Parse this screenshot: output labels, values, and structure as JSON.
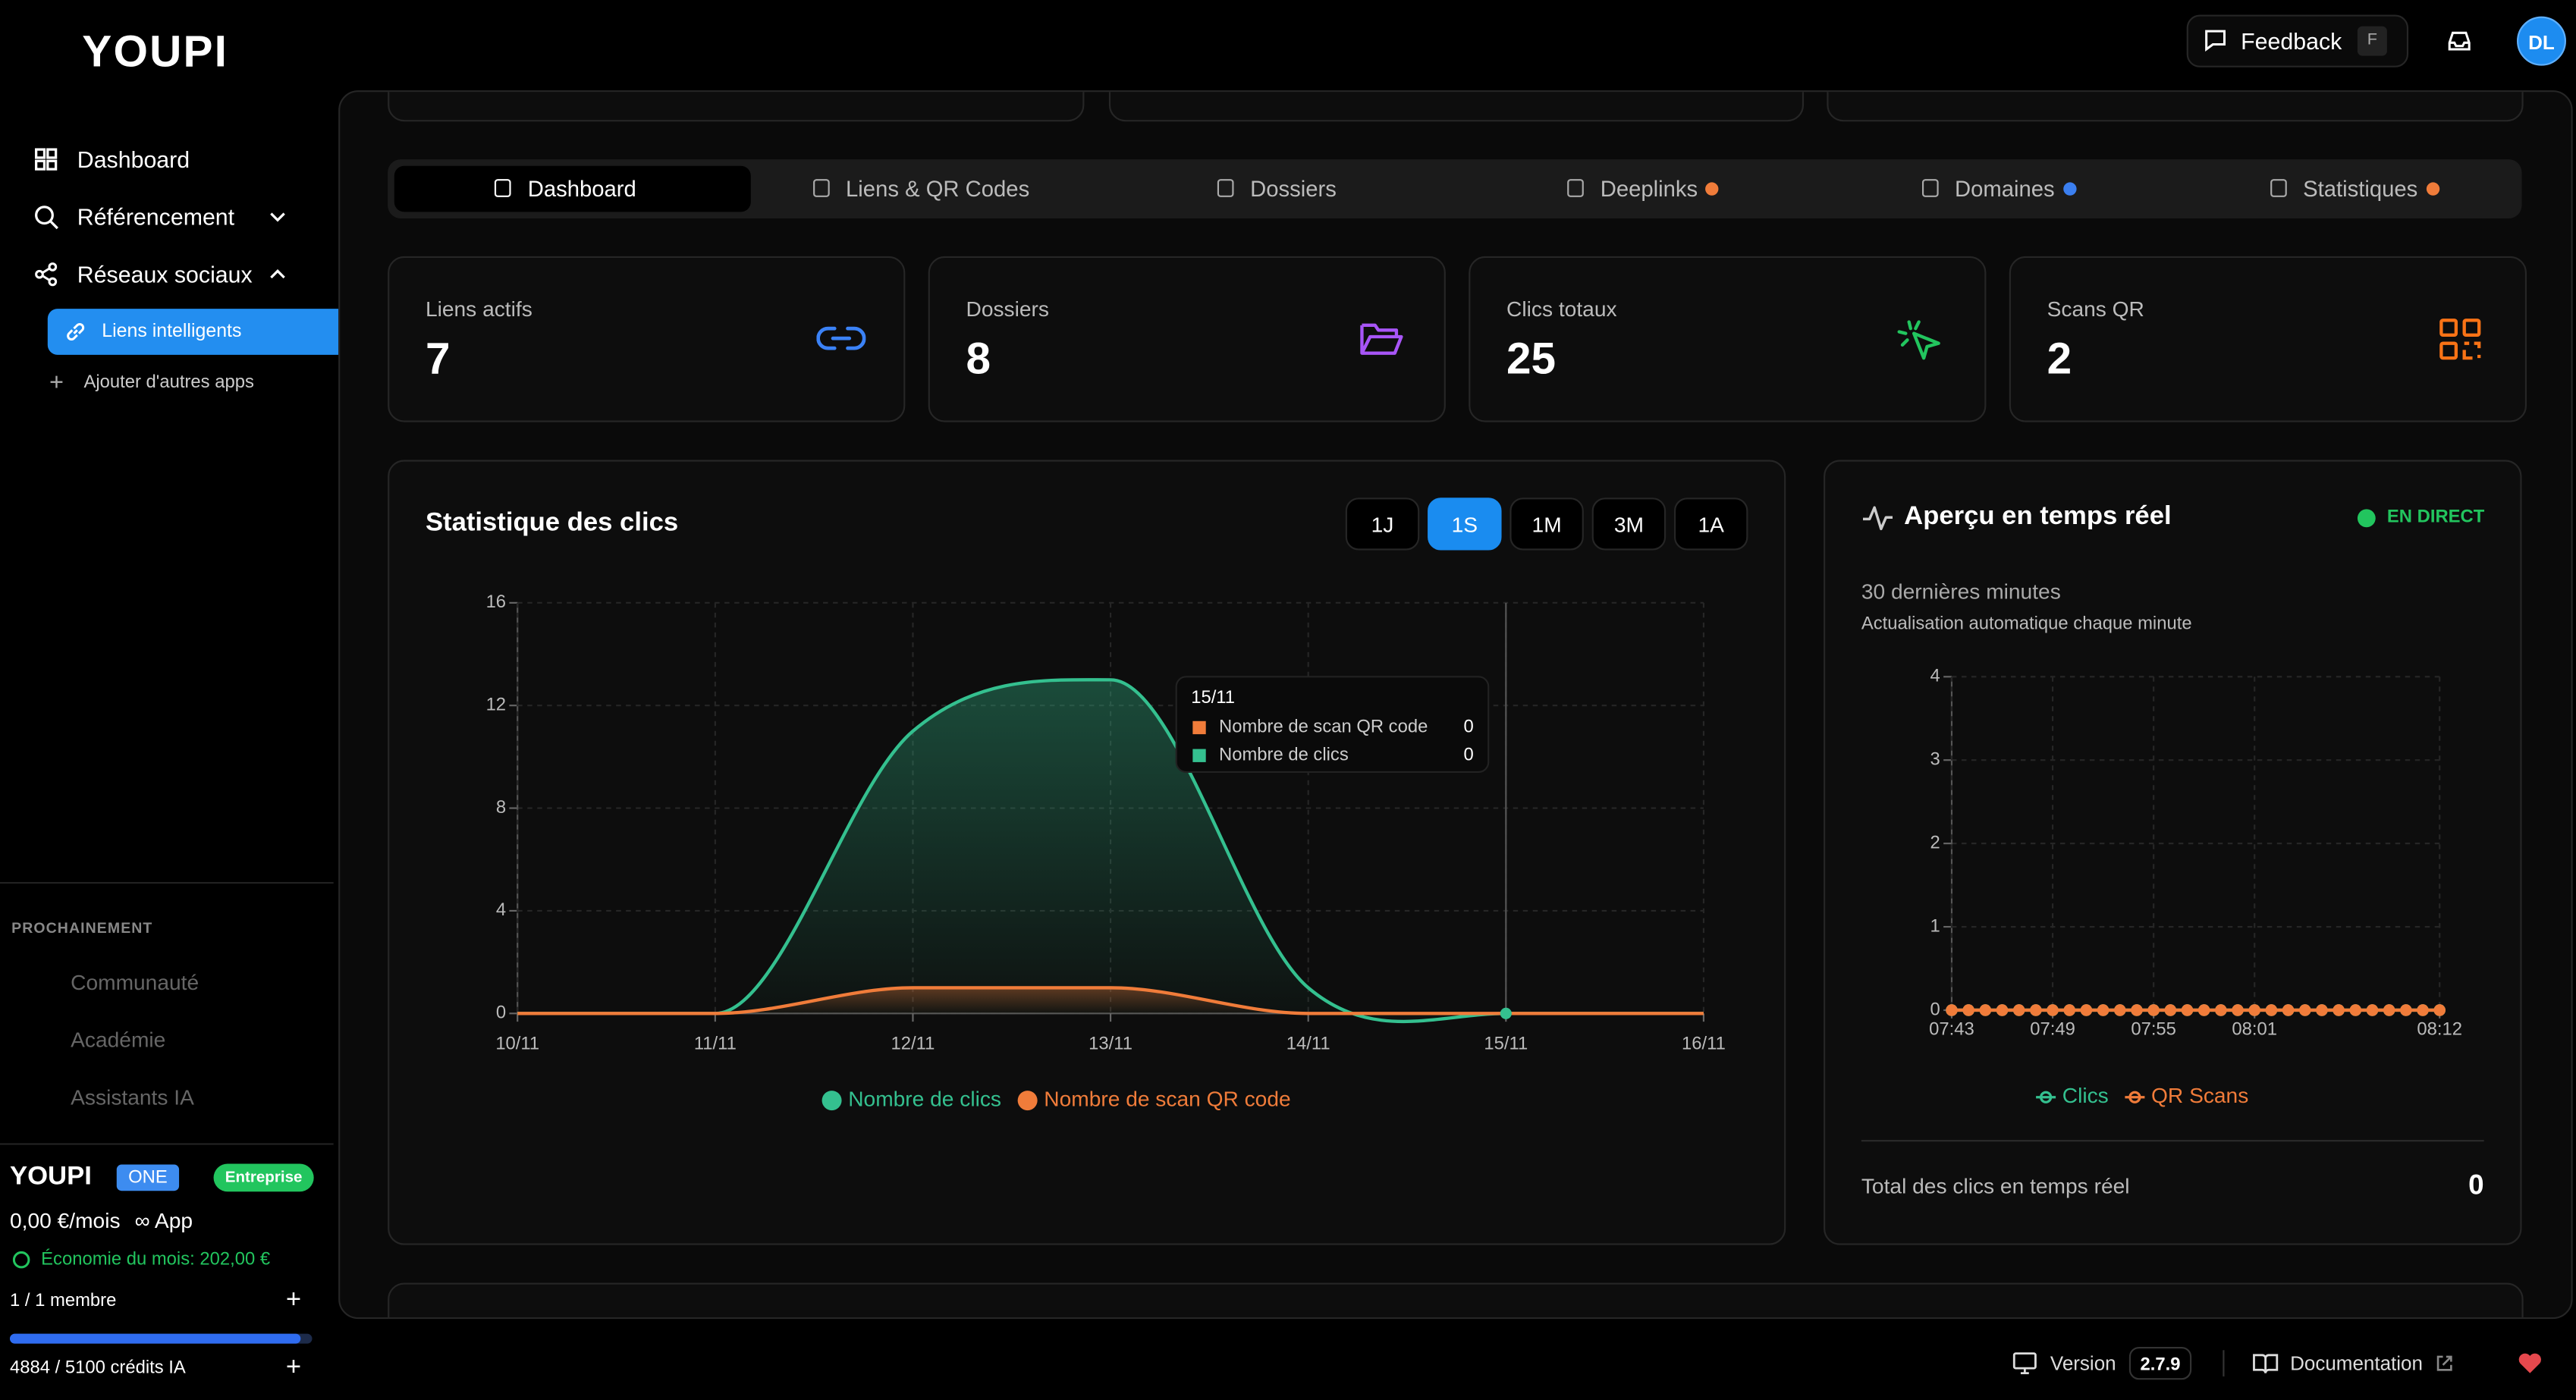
{
  "sidebar": {
    "logo": "YOUPI",
    "nav": [
      "Dashboard",
      "Référencement",
      "Réseaux sociaux"
    ],
    "subnav": [
      "Liens intelligents",
      "Ajouter d'autres apps"
    ],
    "soon_title": "PROCHAINEMENT",
    "soon": [
      "Communauté",
      "Académie",
      "Assistants IA"
    ],
    "plan": {
      "logo": "YOUPI",
      "badge": "ONE",
      "tier": "Entreprise",
      "price": "0,00 €/mois",
      "app": "∞ App",
      "savings": "Économie du mois: 202,00 €",
      "members": "1 / 1 membre",
      "credits": "4884 / 5100 crédits IA"
    }
  },
  "header": {
    "feedback": "Feedback",
    "shortcut": "F",
    "avatar": "DL"
  },
  "tabs": [
    {
      "label": "Dashboard"
    },
    {
      "label": "Liens & QR Codes"
    },
    {
      "label": "Dossiers"
    },
    {
      "label": "Deeplinks",
      "dot": "#f07c3a"
    },
    {
      "label": "Domaines",
      "dot": "#3b7ff0"
    },
    {
      "label": "Statistiques",
      "dot": "#f07c3a"
    }
  ],
  "active_tab": "Dashboard",
  "stats": [
    {
      "label": "Liens actifs",
      "value": 7
    },
    {
      "label": "Dossiers",
      "value": 8
    },
    {
      "label": "Clics totaux",
      "value": 25
    },
    {
      "label": "Scans QR",
      "value": 2
    }
  ],
  "chart_data": [
    {
      "type": "area",
      "title": "Statistique des clics",
      "ranges": [
        "1J",
        "1S",
        "1M",
        "3M",
        "1A"
      ],
      "active_range": "1S",
      "categories": [
        "10/11",
        "11/11",
        "12/11",
        "13/11",
        "14/11",
        "15/11",
        "16/11"
      ],
      "series": [
        {
          "name": "Nombre de clics",
          "color": "#34c08f",
          "values": [
            0,
            0,
            11,
            13,
            1,
            0,
            0
          ]
        },
        {
          "name": "Nombre de scan QR code",
          "color": "#f07c3a",
          "values": [
            0,
            0,
            1,
            1,
            0,
            0,
            0
          ]
        }
      ],
      "ylim": [
        0,
        16
      ],
      "yticks": [
        0,
        4,
        8,
        12,
        16
      ],
      "grid": true
    },
    {
      "type": "line",
      "title": "Aperçu en temps réel",
      "status": "EN DIRECT",
      "subtitle": "30 dernières minutes",
      "note": "Actualisation automatique chaque minute",
      "categories": [
        "07:43",
        null,
        null,
        null,
        null,
        null,
        "07:49",
        null,
        null,
        null,
        null,
        null,
        "07:55",
        null,
        null,
        null,
        null,
        null,
        "08:01",
        null,
        null,
        null,
        null,
        null,
        null,
        null,
        null,
        null,
        null,
        "08:12"
      ],
      "series": [
        {
          "name": "Clics",
          "color": "#34c08f",
          "values": [
            0,
            0,
            0,
            0,
            0,
            0,
            0,
            0,
            0,
            0,
            0,
            0,
            0,
            0,
            0,
            0,
            0,
            0,
            0,
            0,
            0,
            0,
            0,
            0,
            0,
            0,
            0,
            0,
            0,
            0
          ]
        },
        {
          "name": "QR Scans",
          "color": "#f07c3a",
          "values": [
            0,
            0,
            0,
            0,
            0,
            0,
            0,
            0,
            0,
            0,
            0,
            0,
            0,
            0,
            0,
            0,
            0,
            0,
            0,
            0,
            0,
            0,
            0,
            0,
            0,
            0,
            0,
            0,
            0,
            0
          ]
        }
      ],
      "ylim": [
        0,
        4
      ],
      "yticks": [
        0,
        1,
        2,
        3,
        4
      ],
      "grid": true,
      "total_label": "Total des clics en temps réel",
      "total": 0
    }
  ],
  "footer": {
    "version_label": "Version",
    "version": "2.7.9",
    "docs": "Documentation"
  }
}
